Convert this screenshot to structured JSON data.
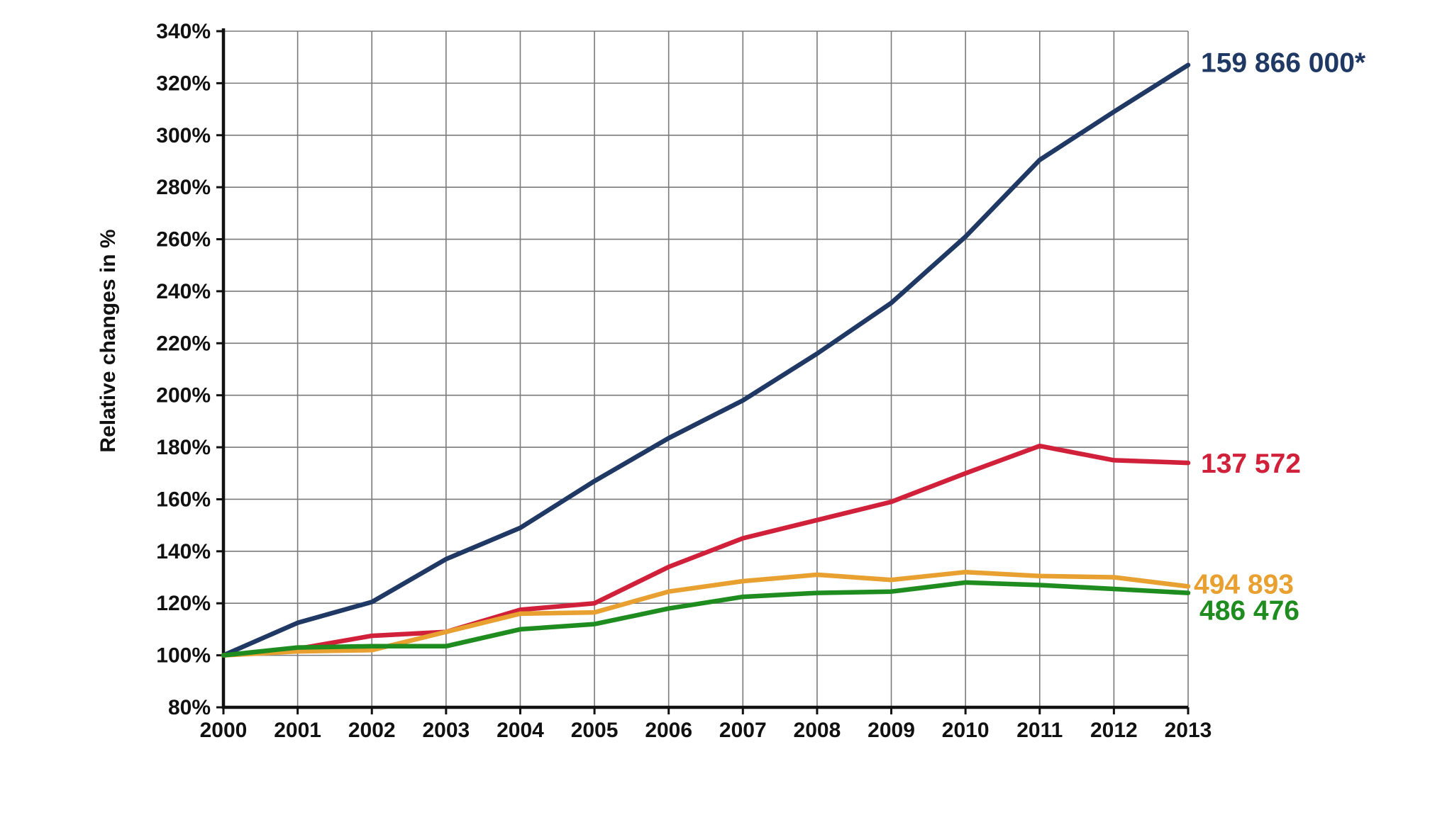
{
  "chart_data": {
    "type": "line",
    "ylabel": "Relative changes in %",
    "xlabel": "",
    "title": "",
    "x": [
      "2000",
      "2001",
      "2002",
      "2003",
      "2004",
      "2005",
      "2006",
      "2007",
      "2008",
      "2009",
      "2010",
      "2011",
      "2012",
      "2013"
    ],
    "ylim": [
      80,
      340
    ],
    "yticks": [
      80,
      100,
      120,
      140,
      160,
      180,
      200,
      220,
      240,
      260,
      280,
      300,
      320,
      340
    ],
    "ytick_labels": [
      "80%",
      "100%",
      "120%",
      "140%",
      "160%",
      "180%",
      "200%",
      "220%",
      "240%",
      "260%",
      "280%",
      "300%",
      "320%",
      "340%"
    ],
    "grid": true,
    "legend": "none",
    "series": [
      {
        "end_label": "159 866 000*",
        "color": "#1f3864",
        "values": [
          100,
          112.5,
          120.5,
          137,
          149,
          167,
          183.5,
          198,
          216,
          235.5,
          261,
          290.5,
          309,
          327
        ]
      },
      {
        "end_label": "137 572",
        "color": "#d0203a",
        "values": [
          100,
          102.5,
          107.5,
          109,
          117.5,
          120,
          134,
          145,
          152,
          159,
          170,
          180.5,
          175,
          174
        ]
      },
      {
        "end_label": "494 893",
        "color": "#e8a030",
        "values": [
          100,
          101.5,
          102,
          109,
          116,
          116.5,
          124.5,
          128.5,
          131,
          129,
          132,
          130.5,
          130,
          126.5
        ]
      },
      {
        "end_label": "486 476",
        "color": "#1e8c1e",
        "values": [
          100,
          103,
          103.5,
          103.5,
          110,
          112,
          118,
          122.5,
          124,
          124.5,
          128,
          127,
          125.5,
          124
        ]
      }
    ]
  }
}
